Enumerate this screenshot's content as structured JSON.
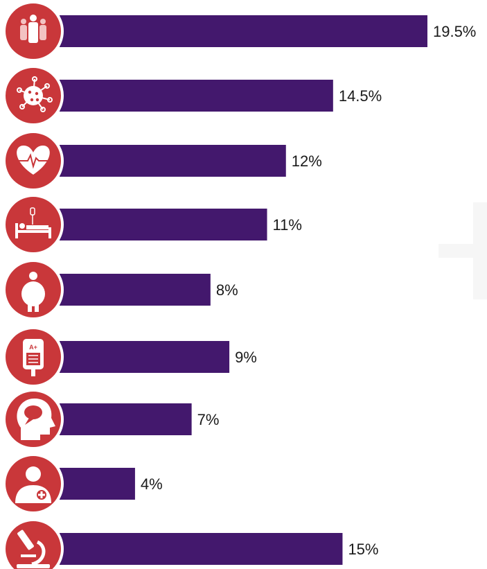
{
  "chart_data": {
    "type": "bar",
    "orientation": "horizontal",
    "categories": [
      "family-icon",
      "virus-icon",
      "heart-rate-icon",
      "hospital-bed-icon",
      "obesity-icon",
      "blood-bag-icon",
      "head-speech-icon",
      "doctor-icon",
      "microscope-icon"
    ],
    "values": [
      19.5,
      14.5,
      12,
      11,
      8,
      9,
      7,
      4,
      15
    ],
    "value_labels": [
      "19.5%",
      "14.5%",
      "12%",
      "11%",
      "8%",
      "9%",
      "7%",
      "4%",
      "15%"
    ],
    "title": "",
    "xlabel": "",
    "ylabel": "",
    "grid": false,
    "legend": "none"
  },
  "colors": {
    "bar": "#43186d",
    "icon_circle": "#c9373a",
    "icon_glyph": "#ffffff",
    "icon_accent": "#f3c2c2",
    "label_text": "#1a1a1a"
  }
}
